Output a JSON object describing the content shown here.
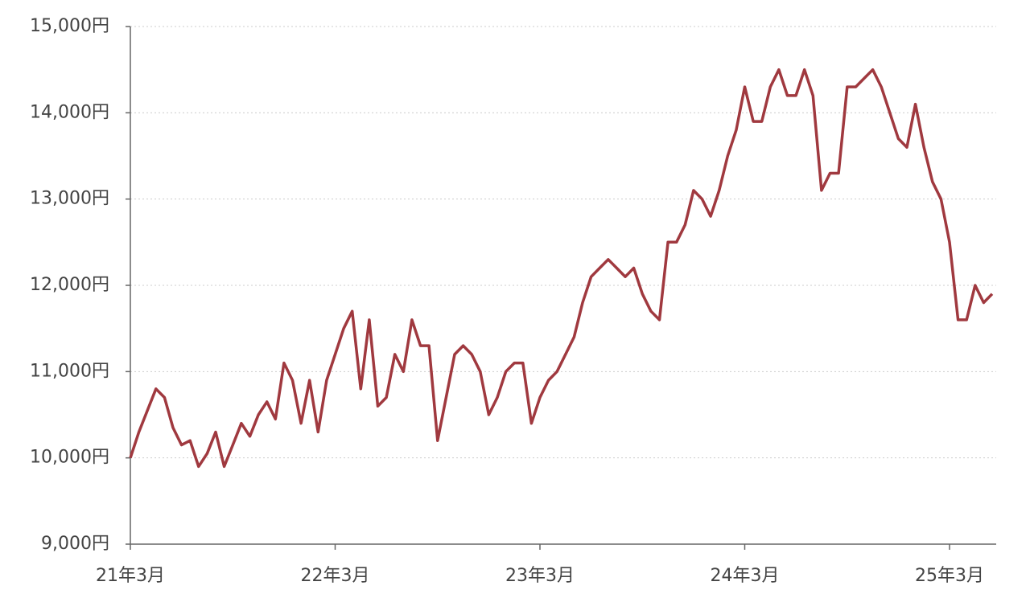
{
  "chart_data": {
    "type": "line",
    "categories": [
      "21年3月",
      null,
      null,
      null,
      null,
      null,
      null,
      null,
      null,
      null,
      null,
      null,
      null,
      null,
      null,
      null,
      null,
      null,
      null,
      null,
      null,
      null,
      null,
      null,
      "22年3月",
      null,
      null,
      null,
      null,
      null,
      null,
      null,
      null,
      null,
      null,
      null,
      null,
      null,
      null,
      null,
      null,
      null,
      null,
      null,
      null,
      null,
      null,
      null,
      "23年3月",
      null,
      null,
      null,
      null,
      null,
      null,
      null,
      null,
      null,
      null,
      null,
      null,
      null,
      null,
      null,
      null,
      null,
      null,
      null,
      null,
      null,
      null,
      null,
      "24年3月",
      null,
      null,
      null,
      null,
      null,
      null,
      null,
      null,
      null,
      null,
      null,
      null,
      null,
      null,
      null,
      null,
      null,
      null,
      null,
      null,
      null,
      null,
      null,
      "25年3月",
      null,
      null,
      null,
      null,
      null
    ],
    "series": [
      {
        "color": "#a0393f",
        "values": [
          10000,
          10300,
          10550,
          10800,
          10700,
          10350,
          10150,
          10200,
          9900,
          10050,
          10300,
          9900,
          10150,
          10400,
          10250,
          10500,
          10650,
          10450,
          11100,
          10900,
          10400,
          10900,
          10300,
          10900,
          11200,
          11500,
          11700,
          10800,
          11600,
          10600,
          10700,
          11200,
          11000,
          11600,
          11300,
          11300,
          10200,
          10700,
          11200,
          11300,
          11200,
          11000,
          10500,
          10700,
          11000,
          11100,
          11100,
          10400,
          10700,
          10900,
          11000,
          11200,
          11400,
          11800,
          12100,
          12200,
          12300,
          12200,
          12100,
          12200,
          11900,
          11700,
          11600,
          12500,
          12500,
          12700,
          13100,
          13000,
          12800,
          13100,
          13500,
          13800,
          14300,
          13900,
          13900,
          14300,
          14500,
          14200,
          14200,
          14500,
          14200,
          13100,
          13300,
          13300,
          14300,
          14300,
          14400,
          14500,
          14300,
          14000,
          13700,
          13600,
          14100,
          13600,
          13200,
          13000,
          12500,
          11600,
          11600,
          12000,
          11800,
          11900
        ]
      }
    ],
    "ylim": [
      9000,
      15000
    ],
    "yticks": [
      {
        "value": 9000,
        "label": "9,000円"
      },
      {
        "value": 10000,
        "label": "10,000円"
      },
      {
        "value": 11000,
        "label": "11,000円"
      },
      {
        "value": 12000,
        "label": "12,000円"
      },
      {
        "value": 13000,
        "label": "13,000円"
      },
      {
        "value": 14000,
        "label": "14,000円"
      },
      {
        "value": 15000,
        "label": "15,000円"
      }
    ],
    "grid": true
  }
}
